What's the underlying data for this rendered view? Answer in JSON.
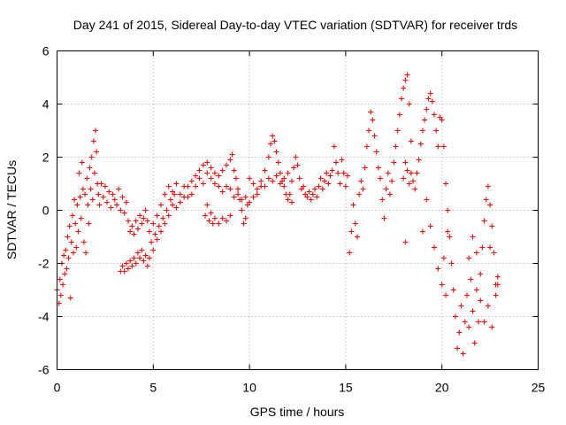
{
  "chart_data": {
    "type": "scatter",
    "title": "Day 241 of 2015, Sidereal Day-to-day VTEC variation (SDTVAR) for receiver trds",
    "xlabel": "GPS time / hours",
    "ylabel": "SDTVAR / TECUs",
    "xlim": [
      0,
      25
    ],
    "ylim": [
      -6,
      6
    ],
    "xticks": [
      0,
      5,
      10,
      15,
      20,
      25
    ],
    "yticks": [
      -6,
      -4,
      -2,
      0,
      2,
      4,
      6
    ],
    "grid": true,
    "marker": "+",
    "series": [
      {
        "name": "SDTVAR",
        "color": "#ff0000",
        "points": [
          [
            0.0,
            -3.0
          ],
          [
            0.1,
            -3.5
          ],
          [
            0.15,
            -2.6
          ],
          [
            0.2,
            -3.2
          ],
          [
            0.25,
            -2.0
          ],
          [
            0.3,
            -2.8
          ],
          [
            0.35,
            -1.7
          ],
          [
            0.4,
            -2.4
          ],
          [
            0.45,
            -1.5
          ],
          [
            0.5,
            -2.2
          ],
          [
            0.55,
            -1.0
          ],
          [
            0.6,
            -1.8
          ],
          [
            0.65,
            -0.6
          ],
          [
            0.7,
            -3.3
          ],
          [
            0.75,
            -1.2
          ],
          [
            0.8,
            -0.2
          ],
          [
            0.85,
            -1.6
          ],
          [
            0.9,
            0.4
          ],
          [
            0.95,
            -0.5
          ],
          [
            1.0,
            -1.4
          ],
          [
            1.05,
            0.2
          ],
          [
            1.1,
            -0.8
          ],
          [
            1.15,
            1.4
          ],
          [
            1.2,
            0.5
          ],
          [
            1.25,
            -0.3
          ],
          [
            1.3,
            1.8
          ],
          [
            1.35,
            0.8
          ],
          [
            1.4,
            -1.2
          ],
          [
            1.45,
            0.6
          ],
          [
            1.5,
            -1.6
          ],
          [
            1.55,
            1.2
          ],
          [
            1.6,
            0.2
          ],
          [
            1.65,
            -0.5
          ],
          [
            1.7,
            1.6
          ],
          [
            1.75,
            0.8
          ],
          [
            1.8,
            2.0
          ],
          [
            1.85,
            0.4
          ],
          [
            1.9,
            2.6
          ],
          [
            1.95,
            1.4
          ],
          [
            2.0,
            3.0
          ],
          [
            2.05,
            2.2
          ],
          [
            2.1,
            1.0
          ],
          [
            2.15,
            0.6
          ],
          [
            2.2,
            0.2
          ],
          [
            2.3,
            1.0
          ],
          [
            2.4,
            0.5
          ],
          [
            2.5,
            0.9
          ],
          [
            2.6,
            0.3
          ],
          [
            2.7,
            0.7
          ],
          [
            2.8,
            0.1
          ],
          [
            2.9,
            0.6
          ],
          [
            3.0,
            0.4
          ],
          [
            3.1,
            0.2
          ],
          [
            3.2,
            0.8
          ],
          [
            3.3,
            0.0
          ],
          [
            3.4,
            0.5
          ],
          [
            3.5,
            -0.1
          ],
          [
            3.6,
            0.3
          ],
          [
            3.7,
            -0.4
          ],
          [
            3.8,
            -0.8
          ],
          [
            3.9,
            -0.6
          ],
          [
            4.0,
            -0.9
          ],
          [
            4.1,
            -0.4
          ],
          [
            4.2,
            -0.7
          ],
          [
            4.3,
            -0.2
          ],
          [
            4.4,
            -0.5
          ],
          [
            4.5,
            -0.3
          ],
          [
            4.6,
            0.0
          ],
          [
            4.7,
            -0.4
          ],
          [
            4.8,
            -0.8
          ],
          [
            3.3,
            -2.3
          ],
          [
            3.4,
            -2.1
          ],
          [
            3.5,
            -2.3
          ],
          [
            3.6,
            -2.0
          ],
          [
            3.7,
            -2.2
          ],
          [
            3.8,
            -1.9
          ],
          [
            3.9,
            -2.1
          ],
          [
            4.0,
            -1.8
          ],
          [
            4.1,
            -2.0
          ],
          [
            4.2,
            -1.6
          ],
          [
            4.3,
            -1.8
          ],
          [
            4.4,
            -1.5
          ],
          [
            4.5,
            -1.9
          ],
          [
            4.6,
            -1.7
          ],
          [
            4.7,
            -2.1
          ],
          [
            4.8,
            -1.8
          ],
          [
            4.9,
            -1.2
          ],
          [
            5.0,
            -1.5
          ],
          [
            5.1,
            -0.9
          ],
          [
            5.2,
            -1.1
          ],
          [
            5.3,
            -0.6
          ],
          [
            5.4,
            -0.8
          ],
          [
            5.5,
            -0.3
          ],
          [
            5.6,
            -0.5
          ],
          [
            5.7,
            0.0
          ],
          [
            5.8,
            -0.2
          ],
          [
            5.9,
            0.4
          ],
          [
            6.0,
            0.2
          ],
          [
            6.1,
            0.6
          ],
          [
            6.2,
            0.1
          ],
          [
            5.0,
            -0.5
          ],
          [
            5.2,
            -0.2
          ],
          [
            5.4,
            0.2
          ],
          [
            5.6,
            0.6
          ],
          [
            5.8,
            0.9
          ],
          [
            6.0,
            0.7
          ],
          [
            6.2,
            1.0
          ],
          [
            6.4,
            0.6
          ],
          [
            6.6,
            0.9
          ],
          [
            6.8,
            0.5
          ],
          [
            6.4,
            0.3
          ],
          [
            6.6,
            0.5
          ],
          [
            6.8,
            0.9
          ],
          [
            7.0,
            1.1
          ],
          [
            7.2,
            1.3
          ],
          [
            7.4,
            1.5
          ],
          [
            7.6,
            1.7
          ],
          [
            7.8,
            1.8
          ],
          [
            8.0,
            1.6
          ],
          [
            8.2,
            1.4
          ],
          [
            7.0,
            0.6
          ],
          [
            7.2,
            0.9
          ],
          [
            7.4,
            1.2
          ],
          [
            7.6,
            1.0
          ],
          [
            7.8,
            1.4
          ],
          [
            8.0,
            1.2
          ],
          [
            8.2,
            1.0
          ],
          [
            8.4,
            1.3
          ],
          [
            8.6,
            1.5
          ],
          [
            8.8,
            1.7
          ],
          [
            7.7,
            -0.2
          ],
          [
            7.8,
            0.2
          ],
          [
            7.9,
            -0.4
          ],
          [
            8.0,
            -0.1
          ],
          [
            8.1,
            -0.5
          ],
          [
            8.2,
            -0.3
          ],
          [
            8.4,
            -0.5
          ],
          [
            8.6,
            -0.3
          ],
          [
            8.8,
            -0.4
          ],
          [
            9.0,
            -0.2
          ],
          [
            9.0,
            1.9
          ],
          [
            9.1,
            2.1
          ],
          [
            9.2,
            1.5
          ],
          [
            9.3,
            1.2
          ],
          [
            9.4,
            0.8
          ],
          [
            9.5,
            0.4
          ],
          [
            9.6,
            0.0
          ],
          [
            9.7,
            -0.5
          ],
          [
            9.8,
            -0.3
          ],
          [
            9.9,
            0.2
          ],
          [
            8.4,
            0.9
          ],
          [
            8.6,
            0.7
          ],
          [
            8.8,
            0.9
          ],
          [
            9.0,
            0.8
          ],
          [
            9.2,
            0.5
          ],
          [
            9.4,
            0.6
          ],
          [
            9.6,
            0.4
          ],
          [
            9.8,
            0.5
          ],
          [
            10.0,
            0.3
          ],
          [
            10.2,
            0.5
          ],
          [
            10.0,
            1.2
          ],
          [
            10.2,
            1.0
          ],
          [
            10.4,
            0.8
          ],
          [
            10.6,
            1.1
          ],
          [
            10.8,
            1.5
          ],
          [
            11.0,
            2.0
          ],
          [
            11.1,
            2.5
          ],
          [
            11.2,
            2.8
          ],
          [
            11.3,
            2.6
          ],
          [
            11.4,
            2.2
          ],
          [
            11.5,
            1.8
          ],
          [
            11.6,
            1.4
          ],
          [
            11.7,
            1.1
          ],
          [
            11.8,
            0.9
          ],
          [
            11.9,
            0.6
          ],
          [
            12.0,
            0.4
          ],
          [
            12.1,
            0.6
          ],
          [
            12.2,
            0.3
          ],
          [
            10.4,
            0.6
          ],
          [
            10.6,
            0.9
          ],
          [
            10.8,
            0.9
          ],
          [
            11.0,
            1.2
          ],
          [
            11.2,
            1.1
          ],
          [
            11.4,
            1.3
          ],
          [
            11.6,
            1.0
          ],
          [
            11.8,
            1.2
          ],
          [
            12.0,
            1.4
          ],
          [
            12.2,
            1.1
          ],
          [
            12.3,
            1.6
          ],
          [
            12.4,
            2.0
          ],
          [
            12.5,
            1.7
          ],
          [
            12.6,
            1.2
          ],
          [
            12.7,
            0.8
          ],
          [
            12.8,
            0.9
          ],
          [
            12.9,
            0.6
          ],
          [
            13.0,
            0.5
          ],
          [
            13.1,
            0.7
          ],
          [
            13.2,
            0.4
          ],
          [
            13.3,
            0.6
          ],
          [
            13.4,
            0.8
          ],
          [
            13.5,
            0.5
          ],
          [
            13.6,
            0.9
          ],
          [
            13.7,
            1.2
          ],
          [
            13.8,
            0.8
          ],
          [
            13.9,
            1.1
          ],
          [
            14.0,
            1.4
          ],
          [
            14.1,
            1.0
          ],
          [
            14.2,
            1.3
          ],
          [
            14.3,
            1.5
          ],
          [
            14.4,
            2.4
          ],
          [
            14.5,
            1.8
          ],
          [
            14.6,
            1.4
          ],
          [
            14.7,
            1.0
          ],
          [
            14.8,
            1.9
          ],
          [
            14.9,
            1.4
          ],
          [
            15.0,
            0.9
          ],
          [
            15.1,
            1.3
          ],
          [
            15.2,
            -1.6
          ],
          [
            15.3,
            -0.8
          ],
          [
            15.4,
            0.2
          ],
          [
            15.5,
            -0.5
          ],
          [
            15.6,
            -1.0
          ],
          [
            15.7,
            0.6
          ],
          [
            15.8,
            1.1
          ],
          [
            15.9,
            0.8
          ],
          [
            16.0,
            1.6
          ],
          [
            16.1,
            2.4
          ],
          [
            16.2,
            3.0
          ],
          [
            16.3,
            3.7
          ],
          [
            16.4,
            3.4
          ],
          [
            16.5,
            2.8
          ],
          [
            16.6,
            2.2
          ],
          [
            16.7,
            1.6
          ],
          [
            16.8,
            1.2
          ],
          [
            16.9,
            0.4
          ],
          [
            17.0,
            -0.3
          ],
          [
            17.1,
            0.8
          ],
          [
            17.2,
            1.4
          ],
          [
            17.3,
            0.6
          ],
          [
            17.4,
            1.1
          ],
          [
            17.5,
            1.8
          ],
          [
            17.6,
            2.4
          ],
          [
            17.7,
            3.0
          ],
          [
            17.8,
            3.6
          ],
          [
            17.9,
            4.2
          ],
          [
            18.0,
            4.6
          ],
          [
            18.1,
            4.9
          ],
          [
            18.2,
            5.1
          ],
          [
            18.3,
            4.0
          ],
          [
            18.4,
            2.6
          ],
          [
            18.0,
            1.2
          ],
          [
            18.1,
            1.8
          ],
          [
            18.2,
            1.5
          ],
          [
            18.3,
            1.0
          ],
          [
            18.4,
            1.4
          ],
          [
            18.5,
            1.1
          ],
          [
            18.6,
            0.8
          ],
          [
            18.7,
            1.4
          ],
          [
            18.8,
            1.9
          ],
          [
            18.9,
            2.5
          ],
          [
            19.0,
            3.0
          ],
          [
            19.1,
            3.4
          ],
          [
            19.2,
            3.8
          ],
          [
            19.3,
            4.2
          ],
          [
            19.4,
            4.4
          ],
          [
            19.5,
            4.1
          ],
          [
            19.6,
            3.6
          ],
          [
            19.7,
            3.0
          ],
          [
            19.8,
            2.4
          ],
          [
            19.9,
            3.5
          ],
          [
            18.1,
            -1.2
          ],
          [
            19.0,
            -0.8
          ],
          [
            19.2,
            0.4
          ],
          [
            19.4,
            -0.6
          ],
          [
            19.6,
            -1.4
          ],
          [
            19.8,
            -2.2
          ],
          [
            20.0,
            -2.8
          ],
          [
            20.1,
            -1.8
          ],
          [
            20.2,
            -3.2
          ],
          [
            20.3,
            -0.8
          ],
          [
            20.0,
            3.4
          ],
          [
            20.1,
            2.4
          ],
          [
            20.2,
            1.0
          ],
          [
            20.3,
            0.0
          ],
          [
            20.4,
            -1.0
          ],
          [
            20.5,
            -2.0
          ],
          [
            20.6,
            -3.0
          ],
          [
            20.7,
            -4.0
          ],
          [
            20.8,
            -5.2
          ],
          [
            20.9,
            -4.6
          ],
          [
            21.0,
            -3.6
          ],
          [
            21.1,
            -5.4
          ],
          [
            21.2,
            -4.2
          ],
          [
            21.3,
            -3.2
          ],
          [
            21.4,
            -4.4
          ],
          [
            21.5,
            -2.6
          ],
          [
            21.6,
            -3.8
          ],
          [
            21.7,
            -5.0
          ],
          [
            21.8,
            -3.0
          ],
          [
            21.9,
            -4.2
          ],
          [
            22.0,
            -2.4
          ],
          [
            22.1,
            -1.4
          ],
          [
            22.2,
            -0.4
          ],
          [
            22.3,
            0.4
          ],
          [
            22.4,
            0.9
          ],
          [
            22.5,
            0.2
          ],
          [
            22.6,
            -0.6
          ],
          [
            22.7,
            -1.6
          ],
          [
            22.8,
            -2.8
          ],
          [
            22.9,
            -2.5
          ],
          [
            21.4,
            -1.8
          ],
          [
            21.6,
            -1.0
          ],
          [
            21.8,
            -1.6
          ],
          [
            22.0,
            -3.4
          ],
          [
            22.2,
            -4.2
          ],
          [
            22.4,
            -3.6
          ],
          [
            22.6,
            -4.4
          ],
          [
            22.8,
            -3.2
          ],
          [
            22.9,
            -2.8
          ],
          [
            22.5,
            -1.4
          ]
        ]
      }
    ]
  }
}
